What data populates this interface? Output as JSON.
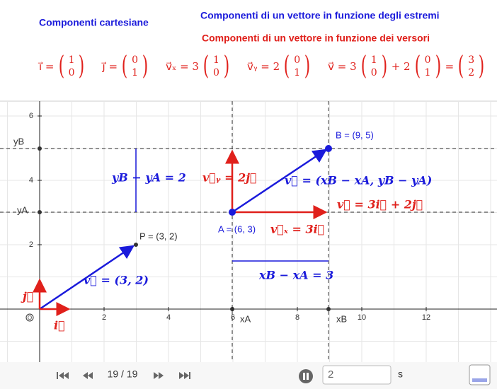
{
  "header": {
    "title_cartesian": "Componenti cartesiane",
    "title_endpoints": "Componenti di un vettore in funzione degli estremi",
    "title_unit_vectors": "Componenti di un vettore in funzione dei versori"
  },
  "formulas": [
    [
      "i⃗ =",
      [
        "1",
        "0"
      ]
    ],
    [
      "j⃗ =",
      [
        "0",
        "1"
      ]
    ],
    [
      "v⃗ₓ = 3",
      [
        "1",
        "0"
      ]
    ],
    [
      "v⃗ᵧ = 2",
      [
        "0",
        "1"
      ]
    ],
    [
      "v⃗ = 3",
      [
        "1",
        "0"
      ],
      "+ 2",
      [
        "0",
        "1"
      ],
      "=",
      [
        "3",
        "2"
      ]
    ]
  ],
  "axes": {
    "x_ticks": [
      "2",
      "4",
      "6",
      "8",
      "10",
      "12"
    ],
    "y_ticks": [
      "2",
      "4",
      "6"
    ],
    "origin": "O"
  },
  "graph_labels": {
    "point_B": "B = (9, 5)",
    "point_P": "P = (3, 2)",
    "point_A": "A = (6, 3)",
    "y_B": "yB",
    "y_A": "yA",
    "x_A": "xA",
    "x_B": "xB",
    "delta_y": "yB − yA = 2",
    "v_y": "v⃗ᵧ = 2j⃗",
    "v_endpoints": "v⃗ = (xB − xA, yB − yA)",
    "v_sum": "v⃗ = 3i⃗ + 2j⃗",
    "v_x": "v⃗ₓ = 3i⃗",
    "delta_x": "xB − xA = 3",
    "v_OP": "v⃗ = (3, 2)",
    "unit_i": "i⃗",
    "unit_j": "j⃗"
  },
  "toolbar": {
    "slide_counter": "19 / 19",
    "speed_input": "2",
    "speed_unit": "s"
  }
}
